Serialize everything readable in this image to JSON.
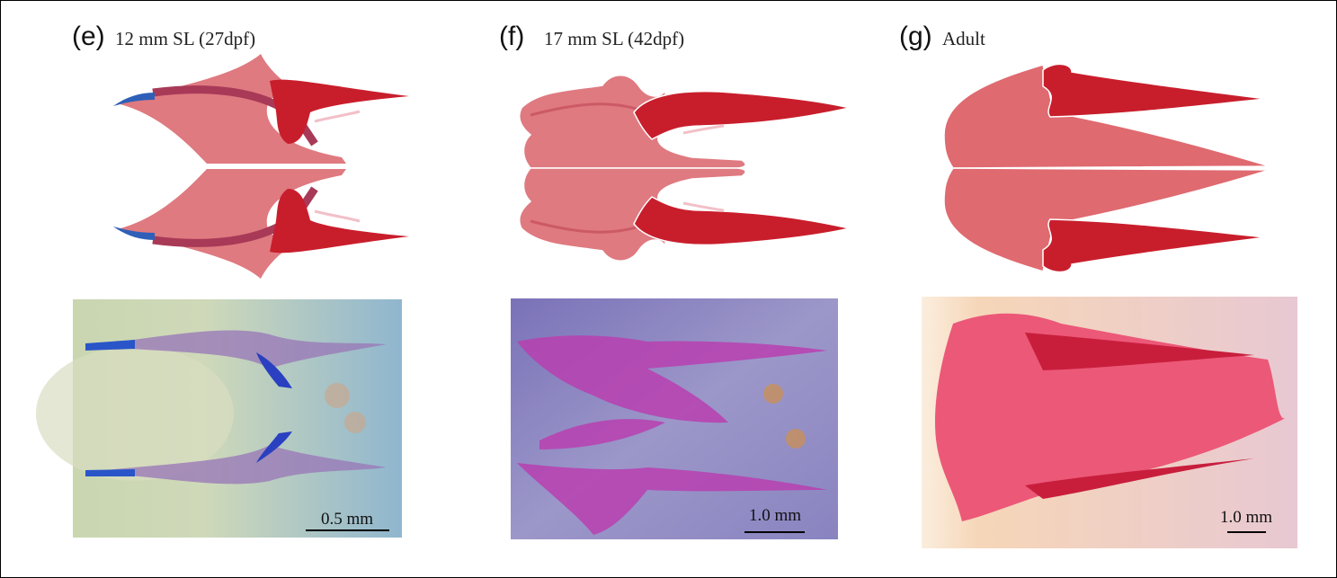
{
  "panels": [
    {
      "label": "(e)",
      "caption": "12 mm SL (27dpf)",
      "scale_bar": "0.5 mm"
    },
    {
      "label": "(f)",
      "caption": "17 mm SL (42dpf)",
      "scale_bar": "1.0 mm"
    },
    {
      "label": "(g)",
      "caption": "Adult",
      "scale_bar": "1.0 mm"
    }
  ]
}
